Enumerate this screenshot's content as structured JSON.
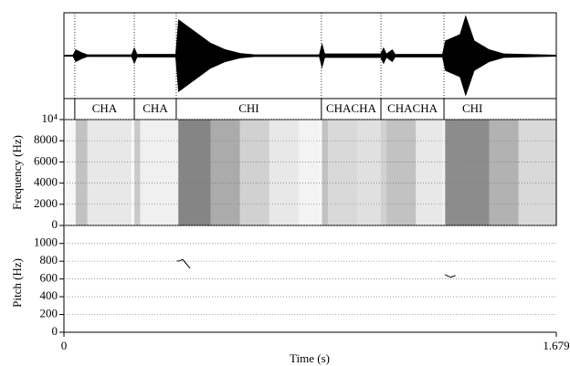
{
  "chart_data": [
    {
      "type": "waveform",
      "xlim": [
        0,
        1.679
      ],
      "ylim": [
        -1,
        1
      ],
      "x": [
        0,
        0.03,
        0.04,
        0.06,
        0.08,
        0.23,
        0.24,
        0.25,
        0.38,
        0.39,
        0.41,
        0.45,
        0.5,
        0.55,
        0.6,
        0.65,
        0.87,
        0.88,
        0.89,
        1.08,
        1.09,
        1.1,
        1.12,
        1.13,
        1.29,
        1.3,
        1.35,
        1.37,
        1.4,
        1.45,
        1.5,
        1.679
      ],
      "values": [
        0.02,
        0.02,
        0.15,
        0.08,
        0.03,
        0.03,
        0.2,
        0.04,
        0.04,
        0.85,
        0.75,
        0.55,
        0.3,
        0.15,
        0.06,
        0.03,
        0.03,
        0.3,
        0.05,
        0.05,
        0.2,
        0.05,
        0.15,
        0.04,
        0.04,
        0.35,
        0.5,
        0.95,
        0.35,
        0.15,
        0.05,
        0.02
      ]
    },
    {
      "type": "tier",
      "xlim": [
        0,
        1.679
      ],
      "intervals": [
        {
          "start": 0.037,
          "end": 0.24,
          "label": "CHA"
        },
        {
          "start": 0.24,
          "end": 0.383,
          "label": "CHA"
        },
        {
          "start": 0.383,
          "end": 0.878,
          "label": "CHI"
        },
        {
          "start": 0.878,
          "end": 1.081,
          "label": "CHACHA"
        },
        {
          "start": 1.081,
          "end": 1.296,
          "label": "CHACHA"
        },
        {
          "start": 1.296,
          "end": 1.49,
          "label": "CHI"
        }
      ]
    },
    {
      "type": "spectrogram",
      "ylabel": "Frequency (Hz)",
      "xlim": [
        0,
        1.679
      ],
      "ylim": [
        0,
        10000
      ],
      "yticks": [
        0,
        2000,
        4000,
        6000,
        8000,
        {
          "value": 10000,
          "label": "10⁴"
        }
      ],
      "grid": true,
      "x": [
        0,
        0.04,
        0.08,
        0.23,
        0.24,
        0.26,
        0.38,
        0.39,
        0.5,
        0.6,
        0.7,
        0.8,
        0.87,
        0.88,
        0.9,
        1.0,
        1.08,
        1.1,
        1.2,
        1.29,
        1.3,
        1.45,
        1.55,
        1.679
      ],
      "values": [
        0.05,
        0.4,
        0.15,
        0.05,
        0.35,
        0.1,
        0.1,
        0.8,
        0.55,
        0.3,
        0.15,
        0.08,
        0.05,
        0.4,
        0.25,
        0.2,
        0.3,
        0.4,
        0.15,
        0.1,
        0.75,
        0.5,
        0.25,
        0.1
      ]
    },
    {
      "type": "line",
      "xlabel": "Time (s)",
      "ylabel": "Pitch (Hz)",
      "xlim": [
        0,
        1.679
      ],
      "ylim": [
        0,
        1100
      ],
      "xticks": [
        0,
        1.679
      ],
      "yticks": [
        0,
        200,
        400,
        600,
        800,
        1000
      ],
      "grid": true,
      "x": [
        0.385,
        0.395,
        0.405,
        0.415,
        0.43,
        null,
        1.3,
        1.31,
        1.32,
        1.335
      ],
      "values": [
        800,
        805,
        820,
        780,
        720,
        null,
        650,
        630,
        620,
        640
      ]
    }
  ]
}
